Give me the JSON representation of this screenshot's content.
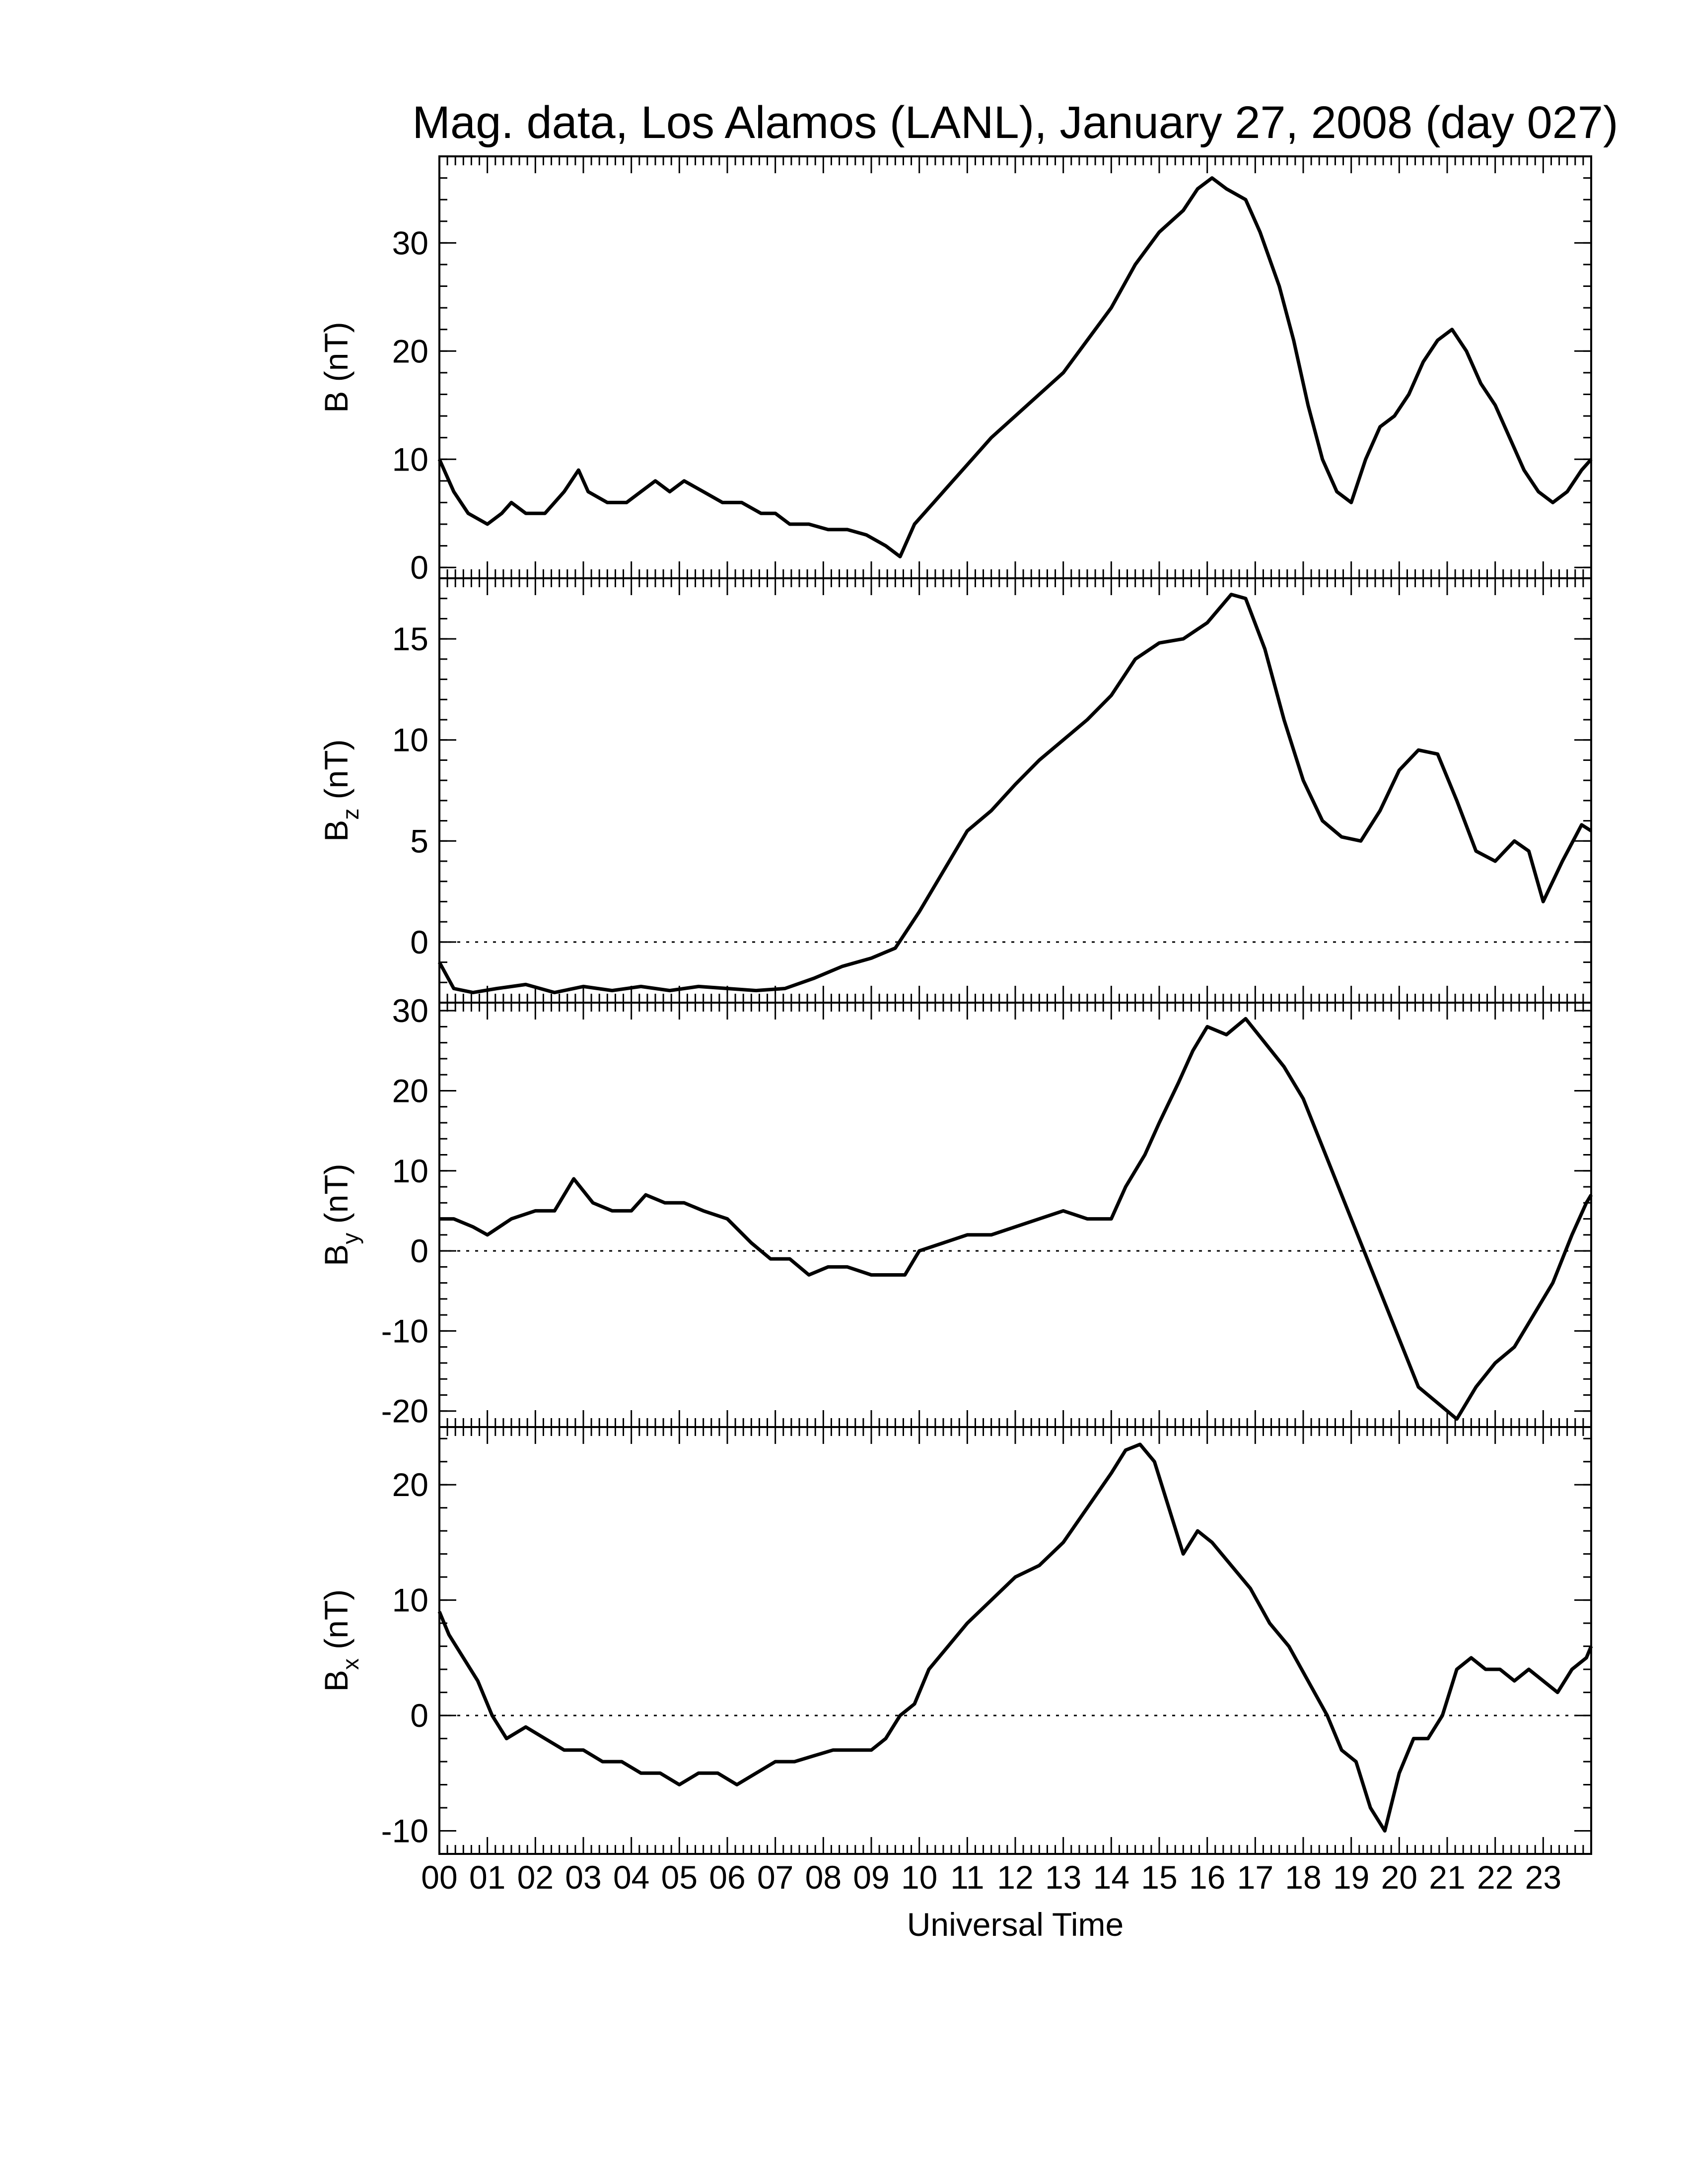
{
  "title": "Mag. data, Los Alamos (LANL), January 27, 2008 (day 027)",
  "xlabel": "Universal Time",
  "x_tick_labels": [
    "00",
    "01",
    "02",
    "03",
    "04",
    "05",
    "06",
    "07",
    "08",
    "09",
    "10",
    "11",
    "12",
    "13",
    "14",
    "15",
    "16",
    "17",
    "18",
    "19",
    "20",
    "21",
    "22",
    "23"
  ],
  "chart_data": [
    {
      "type": "line",
      "id": "B",
      "ylabel": "B (nT)",
      "ylabel_main": "B",
      "ylabel_sub": "",
      "ylabel_unit": " (nT)",
      "xlim": [
        0,
        24
      ],
      "ylim": [
        -1,
        38
      ],
      "yticks": [
        0,
        10,
        20,
        30
      ],
      "zero_line": false,
      "x": [
        0,
        0.3,
        0.6,
        1.0,
        1.3,
        1.5,
        1.8,
        2.2,
        2.6,
        2.9,
        3.1,
        3.5,
        3.9,
        4.2,
        4.5,
        4.8,
        5.1,
        5.5,
        5.9,
        6.3,
        6.7,
        7.0,
        7.3,
        7.7,
        8.1,
        8.5,
        8.9,
        9.3,
        9.6,
        9.9,
        10.3,
        10.7,
        11.1,
        11.5,
        12.0,
        12.5,
        13.0,
        13.5,
        14.0,
        14.5,
        15.0,
        15.5,
        15.8,
        16.1,
        16.4,
        16.8,
        17.1,
        17.5,
        17.8,
        18.1,
        18.4,
        18.7,
        19.0,
        19.3,
        19.6,
        19.9,
        20.2,
        20.5,
        20.8,
        21.1,
        21.4,
        21.7,
        22.0,
        22.3,
        22.6,
        22.9,
        23.2,
        23.5,
        23.8,
        24.0
      ],
      "y": [
        10,
        7,
        5,
        4,
        5,
        6,
        5,
        5,
        7,
        9,
        7,
        6,
        6,
        7,
        8,
        7,
        8,
        7,
        6,
        6,
        5,
        5,
        4,
        4,
        3.5,
        3.5,
        3,
        2,
        1,
        4,
        6,
        8,
        10,
        12,
        14,
        16,
        18,
        21,
        24,
        28,
        31,
        33,
        35,
        36,
        35,
        34,
        31,
        26,
        21,
        15,
        10,
        7,
        6,
        10,
        13,
        14,
        16,
        19,
        21,
        22,
        20,
        17,
        15,
        12,
        9,
        7,
        6,
        7,
        9,
        10
      ]
    },
    {
      "type": "line",
      "id": "Bz",
      "ylabel": "Bz (nT)",
      "ylabel_main": "B",
      "ylabel_sub": "z",
      "ylabel_unit": " (nT)",
      "xlim": [
        0,
        24
      ],
      "ylim": [
        -3,
        18
      ],
      "yticks": [
        0,
        5,
        10,
        15
      ],
      "zero_line": true,
      "x": [
        0,
        0.3,
        0.7,
        1.2,
        1.8,
        2.4,
        3.0,
        3.6,
        4.2,
        4.8,
        5.4,
        6.0,
        6.6,
        7.2,
        7.8,
        8.4,
        9.0,
        9.5,
        10.0,
        10.5,
        11.0,
        11.5,
        12.0,
        12.5,
        13.0,
        13.5,
        14.0,
        14.5,
        15.0,
        15.5,
        16.0,
        16.5,
        16.8,
        17.2,
        17.6,
        18.0,
        18.4,
        18.8,
        19.2,
        19.6,
        20.0,
        20.4,
        20.8,
        21.2,
        21.6,
        22.0,
        22.4,
        22.7,
        23.0,
        23.4,
        23.8,
        24.0
      ],
      "y": [
        -1,
        -2.3,
        -2.5,
        -2.3,
        -2.1,
        -2.5,
        -2.2,
        -2.4,
        -2.2,
        -2.4,
        -2.2,
        -2.3,
        -2.4,
        -2.3,
        -1.8,
        -1.2,
        -0.8,
        -0.3,
        1.5,
        3.5,
        5.5,
        6.5,
        7.8,
        9.0,
        10.0,
        11.0,
        12.2,
        14.0,
        14.8,
        15.0,
        15.8,
        17.2,
        17.0,
        14.5,
        11.0,
        8.0,
        6.0,
        5.2,
        5.0,
        6.5,
        8.5,
        9.5,
        9.3,
        7.0,
        4.5,
        4.0,
        5.0,
        4.5,
        2.0,
        4.0,
        5.8,
        5.5
      ]
    },
    {
      "type": "line",
      "id": "By",
      "ylabel": "By (nT)",
      "ylabel_main": "B",
      "ylabel_sub": "y",
      "ylabel_unit": " (nT)",
      "xlim": [
        0,
        24
      ],
      "ylim": [
        -22,
        31
      ],
      "yticks": [
        -20,
        -10,
        0,
        10,
        20,
        30
      ],
      "zero_line": true,
      "x": [
        0,
        0.3,
        0.7,
        1.0,
        1.5,
        2.0,
        2.4,
        2.8,
        3.2,
        3.6,
        4.0,
        4.3,
        4.7,
        5.1,
        5.5,
        6.0,
        6.5,
        6.9,
        7.3,
        7.7,
        8.1,
        8.5,
        9.0,
        9.4,
        9.7,
        10.0,
        10.5,
        11.0,
        11.5,
        12.0,
        12.5,
        13.0,
        13.5,
        14.0,
        14.3,
        14.7,
        15.0,
        15.4,
        15.7,
        16.0,
        16.4,
        16.8,
        17.2,
        17.6,
        18.0,
        18.4,
        18.8,
        19.2,
        19.6,
        20.0,
        20.4,
        20.8,
        21.2,
        21.6,
        22.0,
        22.4,
        22.8,
        23.2,
        23.6,
        23.9,
        24.0
      ],
      "y": [
        4,
        4,
        3,
        2,
        4,
        5,
        5,
        9,
        6,
        5,
        5,
        7,
        6,
        6,
        5,
        4,
        1,
        -1,
        -1,
        -3,
        -2,
        -2,
        -3,
        -3,
        -3,
        0,
        1,
        2,
        2,
        3,
        4,
        5,
        4,
        4,
        8,
        12,
        16,
        21,
        25,
        28,
        27,
        29,
        26,
        23,
        19,
        13,
        7,
        1,
        -5,
        -11,
        -17,
        -19,
        -21,
        -17,
        -14,
        -12,
        -8,
        -4,
        2,
        6,
        7
      ]
    },
    {
      "type": "line",
      "id": "Bx",
      "ylabel": "Bx (nT)",
      "ylabel_main": "B",
      "ylabel_sub": "x",
      "ylabel_unit": " (nT)",
      "xlim": [
        0,
        24
      ],
      "ylim": [
        -12,
        25
      ],
      "yticks": [
        -10,
        0,
        10,
        20
      ],
      "zero_line": true,
      "x": [
        0,
        0.2,
        0.5,
        0.8,
        1.1,
        1.4,
        1.8,
        2.2,
        2.6,
        3.0,
        3.4,
        3.8,
        4.2,
        4.6,
        5.0,
        5.4,
        5.8,
        6.2,
        6.6,
        7.0,
        7.4,
        7.8,
        8.2,
        8.6,
        9.0,
        9.3,
        9.6,
        9.9,
        10.2,
        10.6,
        11.0,
        11.5,
        12.0,
        12.5,
        13.0,
        13.5,
        14.0,
        14.3,
        14.6,
        14.9,
        15.2,
        15.5,
        15.8,
        16.1,
        16.5,
        16.9,
        17.3,
        17.7,
        18.1,
        18.5,
        18.8,
        19.1,
        19.4,
        19.7,
        20.0,
        20.3,
        20.6,
        20.9,
        21.2,
        21.5,
        21.8,
        22.1,
        22.4,
        22.7,
        23.0,
        23.3,
        23.6,
        23.9,
        24.0
      ],
      "y": [
        9,
        7,
        5,
        3,
        0,
        -2,
        -1,
        -2,
        -3,
        -3,
        -4,
        -4,
        -5,
        -5,
        -6,
        -5,
        -5,
        -6,
        -5,
        -4,
        -4,
        -3.5,
        -3,
        -3,
        -3,
        -2,
        0,
        1,
        4,
        6,
        8,
        10,
        12,
        13,
        15,
        18,
        21,
        23,
        23.5,
        22,
        18,
        14,
        16,
        15,
        13,
        11,
        8,
        6,
        3,
        0,
        -3,
        -4,
        -8,
        -10,
        -5,
        -2,
        -2,
        0,
        4,
        5,
        4,
        4,
        3,
        4,
        3,
        2,
        4,
        5,
        6
      ]
    }
  ]
}
